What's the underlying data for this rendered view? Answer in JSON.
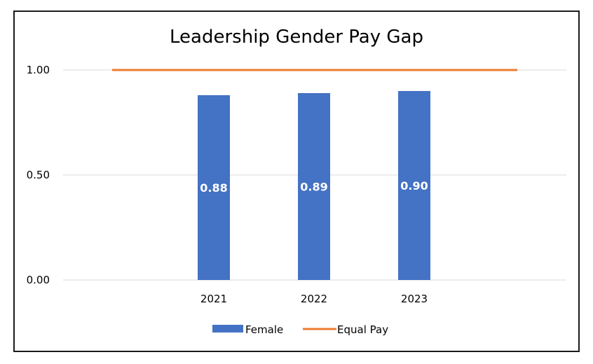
{
  "chart_data": {
    "type": "bar",
    "title": "Leadership Gender Pay Gap",
    "categories": [
      "2021",
      "2022",
      "2023"
    ],
    "series": [
      {
        "name": "Female",
        "kind": "bar",
        "color": "#4472C4",
        "values": [
          0.88,
          0.89,
          0.9
        ],
        "labels": [
          "0.88",
          "0.89",
          "0.90"
        ]
      },
      {
        "name": "Equal Pay",
        "kind": "line",
        "color": "#ED7D31",
        "values": [
          1.0,
          1.0,
          1.0
        ]
      }
    ],
    "yticks": [
      {
        "value": 0,
        "label": "0.00"
      },
      {
        "value": 0.5,
        "label": "0.50"
      },
      {
        "value": 1.0,
        "label": "1.00"
      }
    ],
    "ylim": [
      0,
      1.0
    ],
    "grid": true,
    "legend_position": "bottom"
  }
}
